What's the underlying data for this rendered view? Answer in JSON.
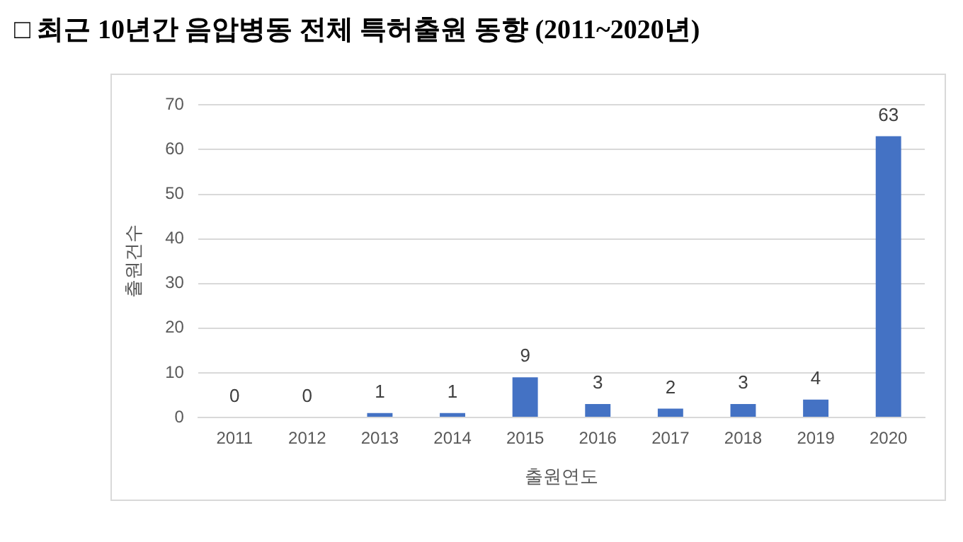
{
  "chart_data": {
    "type": "bar",
    "title": "□ 최근 10년간 음압병동 전체 특허출원 동향 (2011~2020년)",
    "xlabel": "출원연도",
    "ylabel": "출원건수",
    "categories": [
      "2011",
      "2012",
      "2013",
      "2014",
      "2015",
      "2016",
      "2017",
      "2018",
      "2019",
      "2020"
    ],
    "values": [
      0,
      0,
      1,
      1,
      9,
      3,
      2,
      3,
      4,
      63
    ],
    "color": "#4472c4",
    "ylim": [
      0,
      70
    ],
    "yticks": [
      0,
      10,
      20,
      30,
      40,
      50,
      60,
      70
    ],
    "grid": "y",
    "data_labels": true
  }
}
